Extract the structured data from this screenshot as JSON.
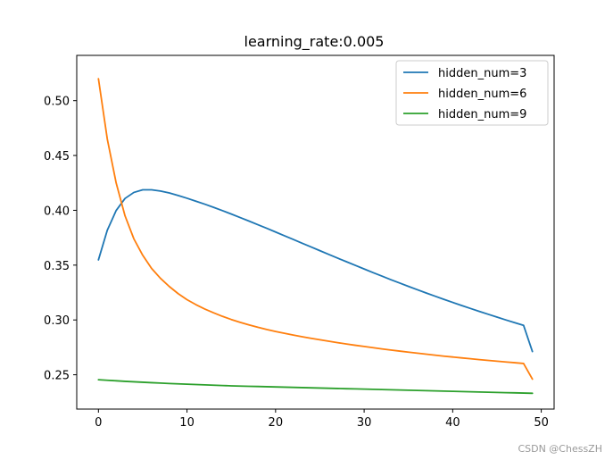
{
  "chart_data": {
    "type": "line",
    "title": "learning_rate:0.005",
    "xlabel": "",
    "ylabel": "",
    "xlim": [
      -2.45,
      51.45
    ],
    "ylim": [
      0.2187,
      0.5413
    ],
    "xticks": [
      0,
      10,
      20,
      30,
      40,
      50
    ],
    "yticks": [
      0.25,
      0.3,
      0.35,
      0.4,
      0.45,
      0.5
    ],
    "ytick_labels": [
      "0.25",
      "0.30",
      "0.35",
      "0.40",
      "0.45",
      "0.50"
    ],
    "grid": false,
    "legend_position": "top-right",
    "x": [
      0,
      1,
      2,
      3,
      4,
      5,
      6,
      7,
      8,
      9,
      10,
      11,
      12,
      13,
      14,
      15,
      16,
      17,
      18,
      19,
      20,
      21,
      22,
      23,
      24,
      25,
      26,
      27,
      28,
      29,
      30,
      31,
      32,
      33,
      34,
      35,
      36,
      37,
      38,
      39,
      40,
      41,
      42,
      43,
      44,
      45,
      46,
      47,
      48,
      49
    ],
    "series": [
      {
        "name": "hidden_num=3",
        "color": "#1f77b4",
        "values": [
          0.3548,
          0.3818,
          0.3998,
          0.4108,
          0.4163,
          0.4187,
          0.4187,
          0.4176,
          0.4158,
          0.4135,
          0.411,
          0.4083,
          0.4056,
          0.4027,
          0.3997,
          0.3966,
          0.3934,
          0.3902,
          0.3869,
          0.3836,
          0.3802,
          0.3768,
          0.3734,
          0.37,
          0.3666,
          0.3632,
          0.3598,
          0.3564,
          0.3531,
          0.3498,
          0.3465,
          0.3432,
          0.34,
          0.3368,
          0.3337,
          0.3306,
          0.3276,
          0.3246,
          0.3217,
          0.3188,
          0.316,
          0.3132,
          0.3105,
          0.3078,
          0.3052,
          0.3026,
          0.3,
          0.2975,
          0.2951,
          0.2712
        ]
      },
      {
        "name": "hidden_num=6",
        "color": "#ff7f0e",
        "values": [
          0.52,
          0.465,
          0.425,
          0.395,
          0.374,
          0.359,
          0.347,
          0.338,
          0.3305,
          0.324,
          0.3185,
          0.314,
          0.31,
          0.3065,
          0.3033,
          0.3004,
          0.2978,
          0.2955,
          0.2933,
          0.2913,
          0.2895,
          0.2878,
          0.2862,
          0.2847,
          0.2833,
          0.2819,
          0.2806,
          0.2793,
          0.2781,
          0.2769,
          0.2758,
          0.2747,
          0.2736,
          0.2726,
          0.2716,
          0.2706,
          0.2697,
          0.2688,
          0.2679,
          0.267,
          0.2662,
          0.2654,
          0.2646,
          0.2638,
          0.2631,
          0.2624,
          0.2617,
          0.261,
          0.2603,
          0.246
        ]
      },
      {
        "name": "hidden_num=9",
        "color": "#2ca02c",
        "values": [
          0.2455,
          0.245,
          0.2445,
          0.244,
          0.2436,
          0.2432,
          0.2428,
          0.2424,
          0.242,
          0.2417,
          0.2414,
          0.2411,
          0.2408,
          0.2405,
          0.2402,
          0.2399,
          0.2397,
          0.2395,
          0.2393,
          0.2391,
          0.2389,
          0.2387,
          0.2385,
          0.2383,
          0.2381,
          0.2379,
          0.2377,
          0.2375,
          0.2373,
          0.2371,
          0.2369,
          0.2367,
          0.2365,
          0.2363,
          0.2361,
          0.2359,
          0.2357,
          0.2355,
          0.2353,
          0.2351,
          0.2349,
          0.2347,
          0.2345,
          0.2343,
          0.2341,
          0.2339,
          0.2337,
          0.2335,
          0.2333,
          0.2331
        ]
      }
    ]
  },
  "watermark": "CSDN @ChessZH"
}
